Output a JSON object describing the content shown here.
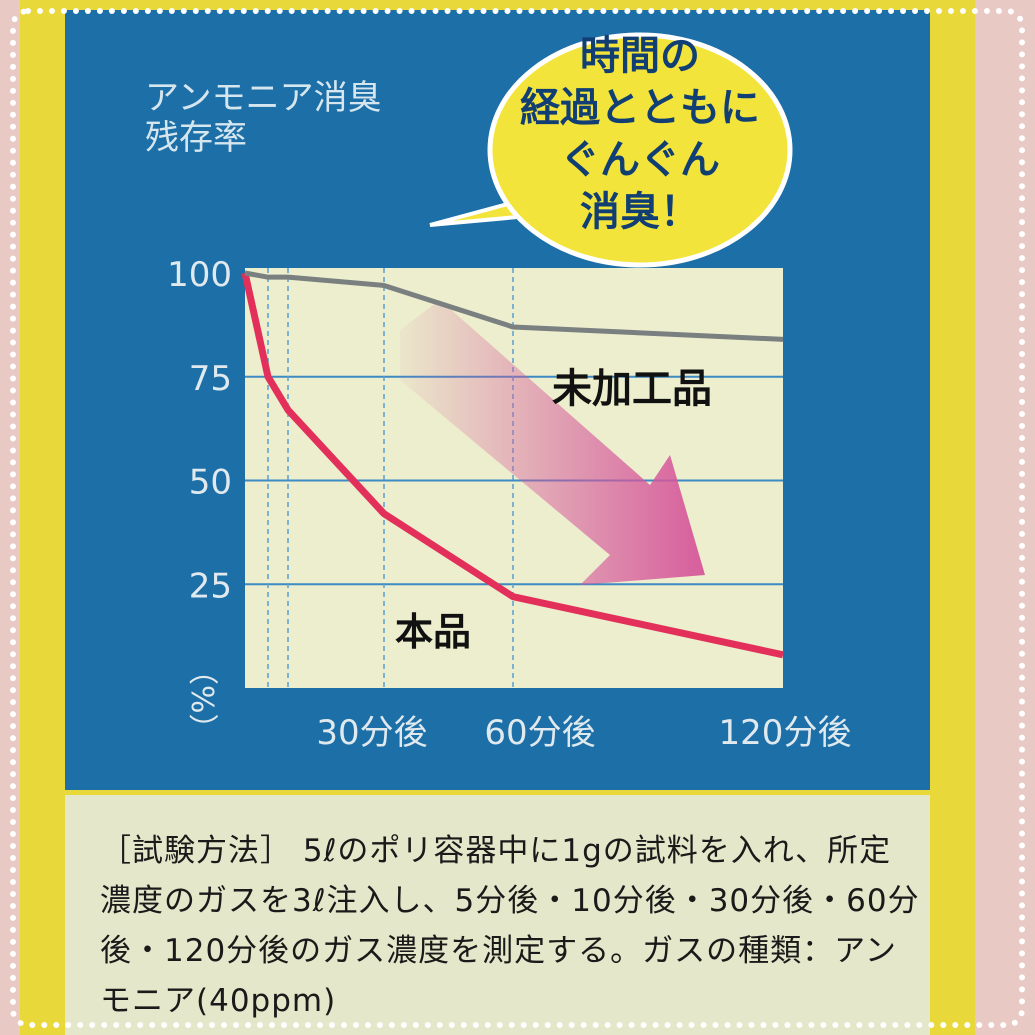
{
  "chart_data": {
    "type": "line",
    "title": "アンモニア消臭残存率",
    "ylabel": "（%）",
    "ylim": [
      0,
      100
    ],
    "yticks": [
      "100",
      "75",
      "50",
      "25"
    ],
    "x_minutes": [
      0,
      5,
      10,
      30,
      60,
      120
    ],
    "xtick_labels": [
      "30分後",
      "60分後",
      "120分後"
    ],
    "grid": true,
    "series": [
      {
        "name": "本品",
        "color": "#e2305a",
        "values": [
          100,
          75,
          67,
          42,
          22,
          8
        ]
      },
      {
        "name": "未加工品",
        "color": "#7a7f80",
        "values": [
          100,
          99,
          99,
          97,
          87,
          84
        ]
      }
    ],
    "annotation": "時間の経過とともにぐんぐん消臭！",
    "annotation_lines": [
      "時間の",
      "経過とともに",
      "ぐんぐん",
      "消臭！"
    ]
  },
  "title_lines": [
    "アンモニア消臭",
    "残存率"
  ],
  "method_note": "［試験方法］ 5ℓのポリ容器中に1gの試料を入れ、所定濃度のガスを3ℓ注入し、5分後・10分後・30分後・60分後・120分後のガス濃度を測定する。ガスの種類：アンモニア(40ppm)",
  "colors": {
    "panel": "#1d6fa8",
    "plot_bg": "#eceecd",
    "bubble": "#f2e43a",
    "arrow": "#d6569a"
  }
}
